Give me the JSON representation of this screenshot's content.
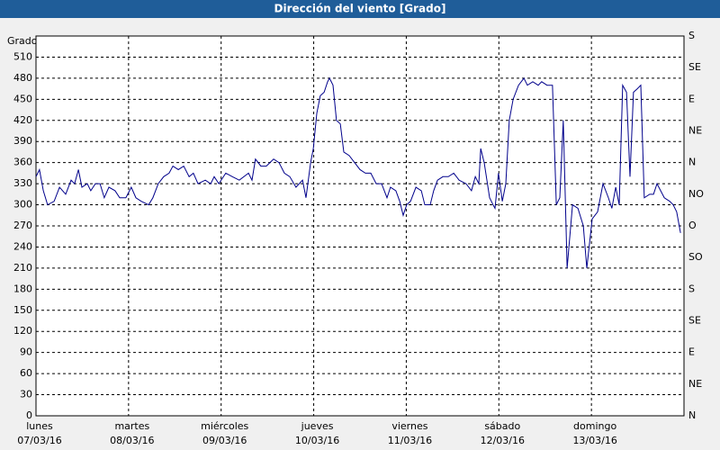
{
  "chart_data": {
    "type": "line",
    "title": "Dirección del viento [Grado]",
    "y_label": "Grado",
    "color": "#00008b",
    "grid": true,
    "xlim": [
      0,
      168
    ],
    "xticks": [
      {
        "value": 0,
        "label": [
          "lunes",
          "07/03/16"
        ]
      },
      {
        "value": 24,
        "label": [
          "martes",
          "08/03/16"
        ]
      },
      {
        "value": 48,
        "label": [
          "miércoles",
          "09/03/16"
        ]
      },
      {
        "value": 72,
        "label": [
          "jueves",
          "10/03/16"
        ]
      },
      {
        "value": 96,
        "label": [
          "viernes",
          "11/03/16"
        ]
      },
      {
        "value": 120,
        "label": [
          "sábado",
          "12/03/16"
        ]
      },
      {
        "value": 144,
        "label": [
          "domingo",
          "13/03/16"
        ]
      }
    ],
    "ylim": [
      0,
      540
    ],
    "yticks": [
      0,
      30,
      60,
      90,
      120,
      150,
      180,
      210,
      240,
      270,
      300,
      330,
      360,
      390,
      420,
      450,
      480,
      510
    ],
    "y2lim": [
      0,
      540
    ],
    "y2ticks": [
      {
        "value": 0,
        "label": "N"
      },
      {
        "value": 45,
        "label": "NE"
      },
      {
        "value": 90,
        "label": "E"
      },
      {
        "value": 135,
        "label": "SE"
      },
      {
        "value": 180,
        "label": "S"
      },
      {
        "value": 225,
        "label": "SO"
      },
      {
        "value": 270,
        "label": "O"
      },
      {
        "value": 315,
        "label": "NO"
      },
      {
        "value": 360,
        "label": "N"
      },
      {
        "value": 405,
        "label": "NE"
      },
      {
        "value": 450,
        "label": "E"
      },
      {
        "value": 495,
        "label": "SE"
      },
      {
        "value": 540,
        "label": "S"
      }
    ],
    "x": [
      0,
      0.9,
      1.9,
      3.0,
      4.7,
      6.1,
      7.7,
      9.1,
      10.0,
      11.0,
      11.9,
      13.3,
      14.2,
      15.4,
      16.6,
      17.7,
      18.9,
      20.5,
      21.7,
      23.3,
      24.7,
      25.9,
      27.3,
      29.2,
      30.3,
      31.7,
      33.1,
      34.5,
      35.5,
      36.9,
      38.3,
      39.7,
      40.8,
      42.0,
      43.9,
      45.3,
      46.2,
      47.4,
      49.2,
      50.9,
      52.7,
      55.1,
      56.0,
      56.9,
      58.3,
      59.7,
      61.6,
      63.0,
      64.4,
      65.8,
      67.4,
      69.1,
      70.0,
      71.2,
      71.9,
      72.8,
      73.7,
      74.7,
      75.6,
      76.1,
      77.0,
      77.9,
      78.9,
      79.8,
      81.2,
      82.6,
      84.0,
      85.4,
      86.8,
      88.2,
      89.6,
      91.0,
      91.9,
      93.3,
      94.3,
      95.2,
      96.1,
      97.1,
      98.5,
      99.9,
      100.8,
      102.2,
      103.1,
      104.1,
      105.5,
      106.9,
      108.3,
      109.7,
      111.5,
      112.9,
      113.9,
      114.8,
      115.3,
      116.2,
      117.6,
      118.5,
      119.0,
      119.9,
      120.9,
      121.8,
      122.7,
      123.7,
      125.1,
      126.5,
      127.4,
      128.8,
      130.2,
      131.1,
      132.5,
      133.9,
      134.9,
      135.8,
      136.7,
      137.7,
      139.1,
      140.5,
      141.9,
      142.8,
      144.2,
      145.6,
      147.0,
      148.4,
      149.3,
      150.3,
      151.2,
      152.1,
      153.1,
      154.0,
      154.9,
      155.9,
      156.8,
      157.7,
      159.1,
      160.1,
      161.0,
      162.9,
      164.3,
      165.2,
      166.1,
      167.1
    ],
    "values": [
      340,
      350,
      320,
      300,
      305,
      325,
      315,
      335,
      330,
      350,
      325,
      330,
      320,
      330,
      330,
      310,
      325,
      320,
      310,
      310,
      325,
      310,
      305,
      300,
      310,
      330,
      340,
      345,
      355,
      350,
      355,
      340,
      345,
      330,
      335,
      330,
      340,
      330,
      345,
      340,
      335,
      345,
      335,
      365,
      355,
      355,
      365,
      360,
      345,
      340,
      325,
      335,
      310,
      360,
      380,
      430,
      455,
      460,
      475,
      480,
      470,
      420,
      415,
      375,
      370,
      360,
      350,
      345,
      345,
      330,
      330,
      310,
      325,
      320,
      305,
      285,
      300,
      305,
      325,
      320,
      300,
      300,
      320,
      335,
      340,
      340,
      345,
      335,
      330,
      320,
      340,
      330,
      380,
      360,
      310,
      300,
      295,
      345,
      305,
      330,
      420,
      450,
      470,
      480,
      470,
      475,
      470,
      475,
      470,
      470,
      300,
      310,
      420,
      210,
      300,
      295,
      270,
      210,
      280,
      290,
      330,
      310,
      295,
      325,
      300,
      470,
      460,
      340,
      460,
      465,
      470,
      310,
      315,
      315,
      330,
      310,
      305,
      300,
      290,
      260
    ]
  }
}
